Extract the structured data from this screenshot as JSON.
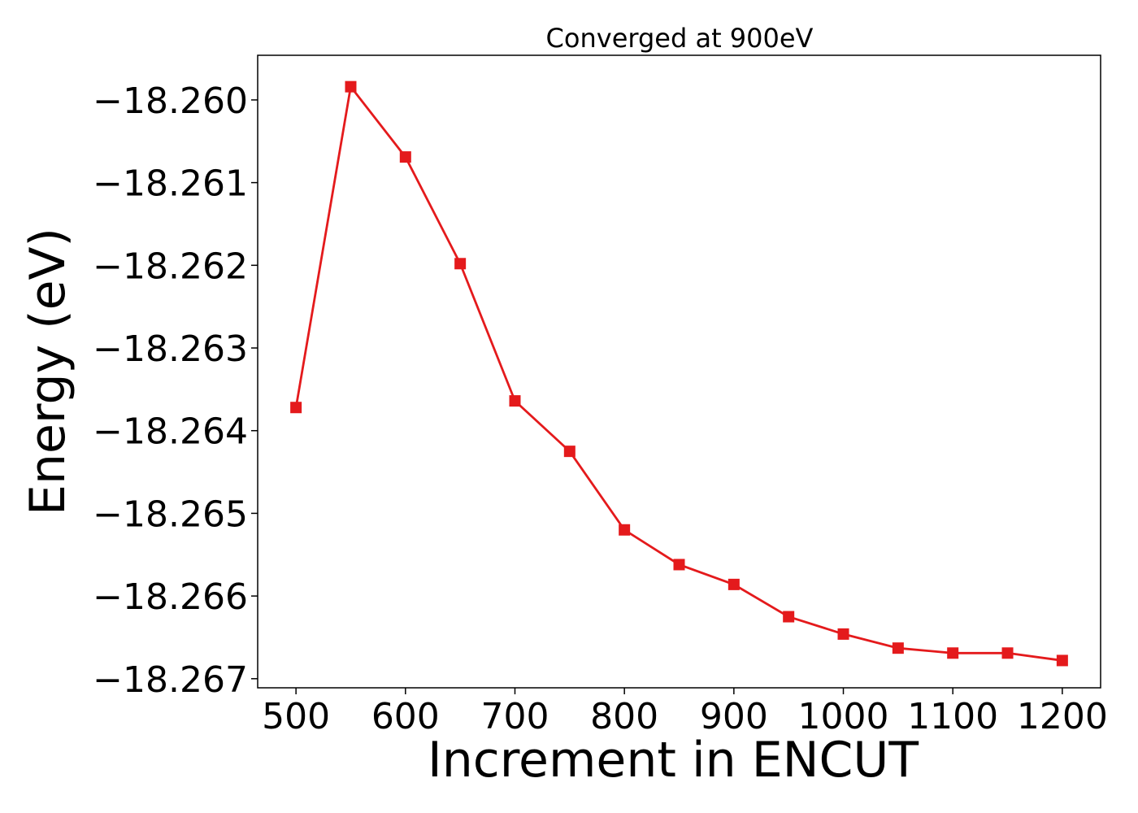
{
  "chart_data": {
    "type": "line",
    "title": "Converged at 900eV",
    "xlabel": "Increment in ENCUT",
    "ylabel": "Energy (eV)",
    "xlim": [
      465,
      1235
    ],
    "ylim": [
      -18.26711,
      -18.25946
    ],
    "xticks": [
      500,
      600,
      700,
      800,
      900,
      1000,
      1100,
      1200
    ],
    "yticks": [
      -18.26,
      -18.261,
      -18.262,
      -18.263,
      -18.264,
      -18.265,
      -18.266,
      -18.267
    ],
    "ytick_labels": [
      "−18.260",
      "−18.261",
      "−18.262",
      "−18.263",
      "−18.264",
      "−18.265",
      "−18.266",
      "−18.267"
    ],
    "grid": false,
    "series": [
      {
        "color": "#e41a1c",
        "marker": "square",
        "x": [
          500,
          550,
          600,
          650,
          700,
          750,
          800,
          850,
          900,
          950,
          1000,
          1050,
          1100,
          1150,
          1200
        ],
        "y": [
          -18.26372,
          -18.25984,
          -18.26069,
          -18.26198,
          -18.26364,
          -18.26425,
          -18.2652,
          -18.26562,
          -18.26586,
          -18.26625,
          -18.26646,
          -18.26663,
          -18.26669,
          -18.26669,
          -18.26678
        ]
      }
    ]
  }
}
